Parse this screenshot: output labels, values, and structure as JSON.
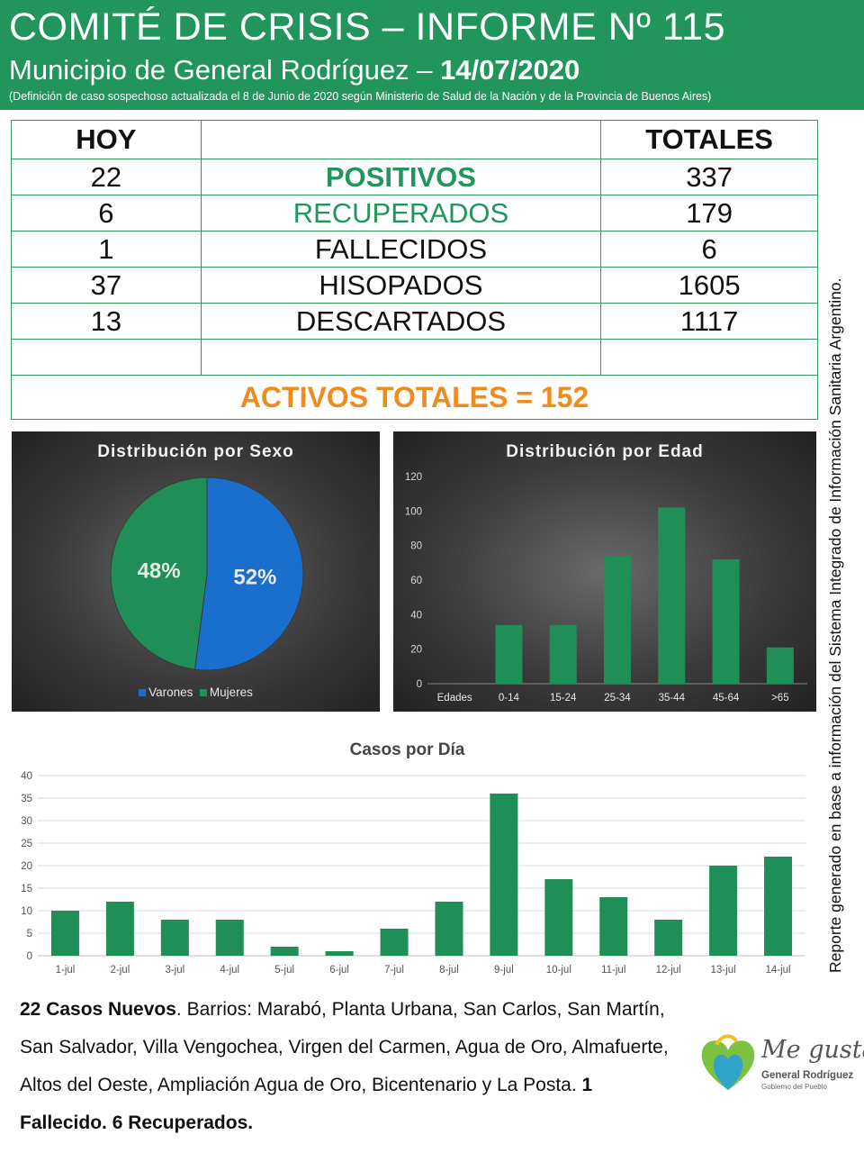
{
  "header": {
    "title": "COMITÉ DE CRISIS – INFORME Nº 115",
    "municipality": "Municipio de General Rodríguez –",
    "date": "14/07/2020",
    "note": "(Definición de caso sospechoso actualizada el 8 de Junio de 2020 según Ministerio de Salud de la Nación y de la Provincia de Buenos Aires)"
  },
  "side_text": "Reporte generado en base a información del Sistema Integrado de Información Sanitaria Argentino.",
  "table": {
    "col_today": "HOY",
    "col_total": "TOTALES",
    "rows": [
      {
        "today": "22",
        "label": "POSITIVOS",
        "total": "337"
      },
      {
        "today": "6",
        "label": "RECUPERADOS",
        "total": "179"
      },
      {
        "today": "1",
        "label": "FALLECIDOS",
        "total": "6"
      },
      {
        "today": "37",
        "label": "HISOPADOS",
        "total": "1605"
      },
      {
        "today": "13",
        "label": "DESCARTADOS",
        "total": "1117"
      }
    ],
    "activos": "ACTIVOS TOTALES = 152"
  },
  "colors": {
    "brand_green": "#22955a",
    "bar_green": "#1f8f57",
    "blue": "#1a6fcc",
    "orange": "#f08c1e"
  },
  "chart_data": [
    {
      "type": "pie",
      "title": "Distribución por Sexo",
      "labels": [
        "Varones",
        "Mujeres"
      ],
      "values": [
        52,
        48
      ],
      "value_labels": [
        "52%",
        "48%"
      ],
      "colors": [
        "#1a6fcc",
        "#1f8f57"
      ],
      "legend": "bottom"
    },
    {
      "type": "bar",
      "title": "Distribución por Edad",
      "categories": [
        "Edades",
        "0-14",
        "15-24",
        "25-34",
        "35-44",
        "45-64",
        ">65"
      ],
      "values": [
        0,
        34,
        34,
        74,
        102,
        72,
        21
      ],
      "ylim": [
        0,
        120
      ],
      "yticks": [
        0,
        20,
        40,
        60,
        80,
        100,
        120
      ],
      "grid": false
    },
    {
      "type": "bar",
      "title": "Casos por Día",
      "categories": [
        "1-jul",
        "2-jul",
        "3-jul",
        "4-jul",
        "5-jul",
        "6-jul",
        "7-jul",
        "8-jul",
        "9-jul",
        "10-jul",
        "11-jul",
        "12-jul",
        "13-jul",
        "14-jul"
      ],
      "values": [
        10,
        12,
        8,
        8,
        2,
        1,
        6,
        12,
        36,
        17,
        13,
        8,
        20,
        22
      ],
      "ylim": [
        0,
        40
      ],
      "yticks": [
        0,
        5,
        10,
        15,
        20,
        25,
        30,
        35,
        40
      ],
      "grid": true
    }
  ],
  "summary": {
    "lead": "22 Casos Nuevos",
    "body": ". Barrios: Marabó, Planta Urbana, San Carlos, San Martín, San Salvador, Villa Vengochea, Virgen del Carmen, Agua de Oro, Almafuerte, Altos del Oeste, Ampliación Agua de Oro, Bicentenario y La Posta. ",
    "tail": "1 Fallecido. 6 Recuperados."
  },
  "logo": {
    "line1": "Me gusta",
    "line2": "General Rodríguez",
    "line3": "Gobierno del Pueblo"
  }
}
